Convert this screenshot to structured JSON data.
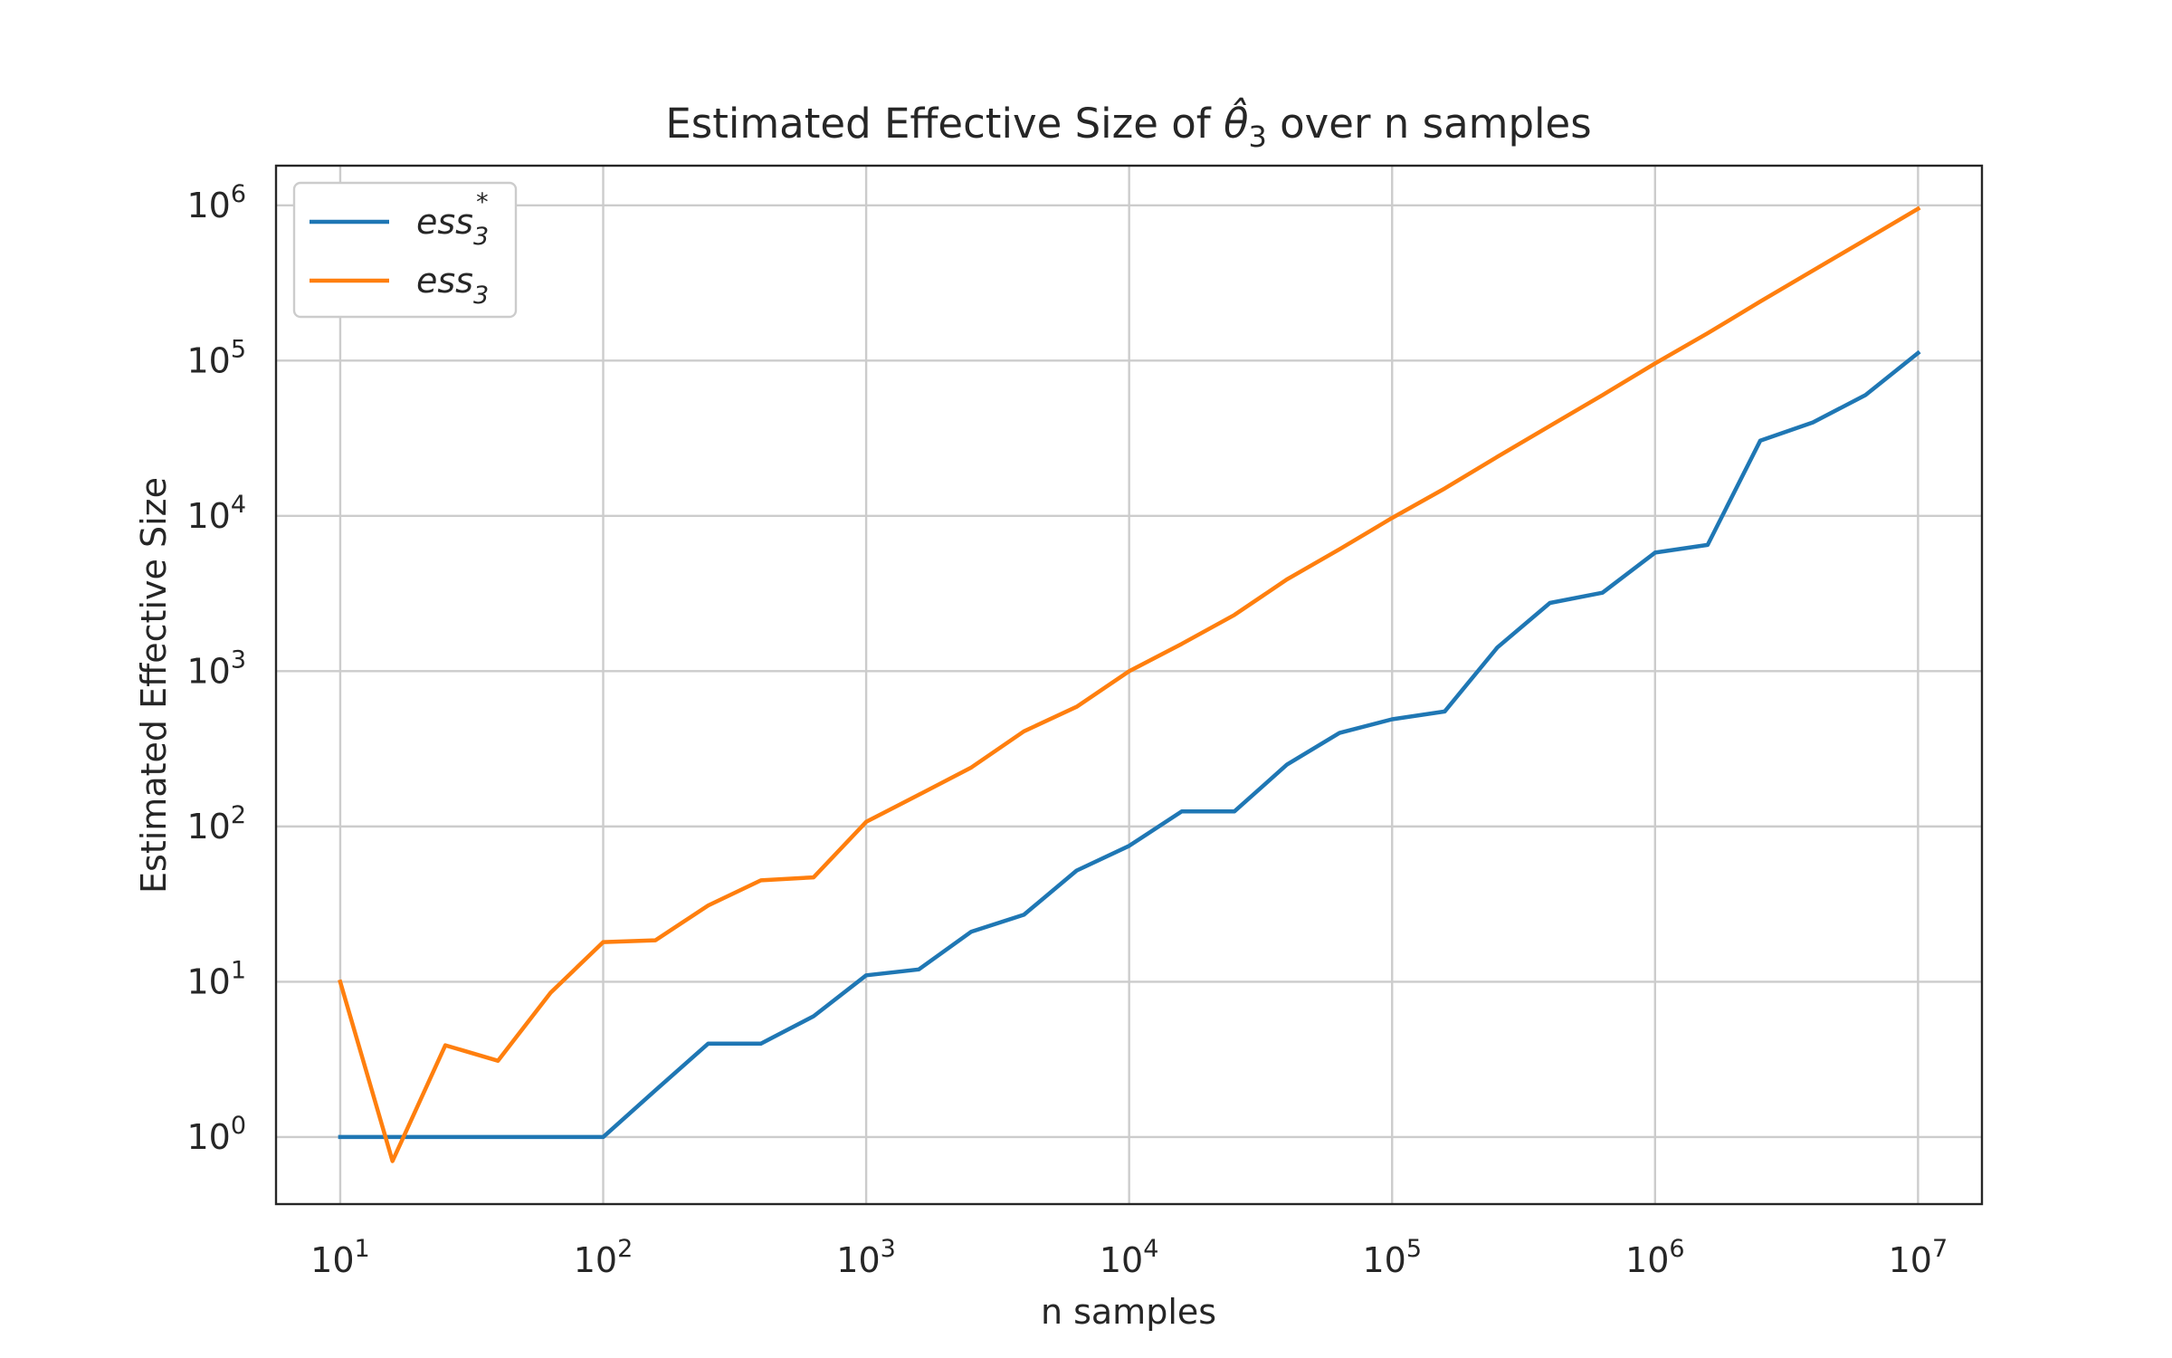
{
  "chart_data": {
    "type": "line",
    "title_prefix": "Estimated Effective Size of ",
    "title_symbol": "θ̂",
    "title_symbol_subscript": "3",
    "title_suffix": " over n samples",
    "xlabel": "n samples",
    "ylabel": "Estimated Effective Size",
    "xscale": "log",
    "yscale": "log",
    "xlim": [
      5.7,
      17500000
    ],
    "ylim": [
      0.37,
      1800000
    ],
    "grid": true,
    "legend_position": "top-left",
    "x_ticks": [
      10,
      100,
      1000,
      10000,
      100000,
      1000000,
      10000000
    ],
    "x_tick_labels": [
      {
        "base": "10",
        "exp": "1"
      },
      {
        "base": "10",
        "exp": "2"
      },
      {
        "base": "10",
        "exp": "3"
      },
      {
        "base": "10",
        "exp": "4"
      },
      {
        "base": "10",
        "exp": "5"
      },
      {
        "base": "10",
        "exp": "6"
      },
      {
        "base": "10",
        "exp": "7"
      }
    ],
    "y_ticks": [
      1,
      10,
      100,
      1000,
      10000,
      100000,
      1000000
    ],
    "y_tick_labels": [
      {
        "base": "10",
        "exp": "0"
      },
      {
        "base": "10",
        "exp": "1"
      },
      {
        "base": "10",
        "exp": "2"
      },
      {
        "base": "10",
        "exp": "3"
      },
      {
        "base": "10",
        "exp": "4"
      },
      {
        "base": "10",
        "exp": "5"
      },
      {
        "base": "10",
        "exp": "6"
      }
    ],
    "x": [
      10,
      15.8,
      25.1,
      39.8,
      63.1,
      100,
      158,
      251,
      398,
      631,
      1000,
      1585,
      2512,
      3981,
      6310,
      10000,
      15849,
      25119,
      39811,
      63096,
      100000,
      158489,
      251189,
      398107,
      630957,
      1000000,
      1584893,
      2511886,
      3981072,
      6309573,
      10000000
    ],
    "series": [
      {
        "name_base": "ess",
        "name_sub": "3",
        "name_sup": "*",
        "color": "#1f77b4",
        "values": [
          1,
          1,
          1,
          1,
          1,
          1,
          2,
          4,
          4,
          6,
          11,
          12,
          21,
          27,
          52,
          75,
          125,
          125,
          250,
          400,
          490,
          550,
          1420,
          2750,
          3200,
          5800,
          6500,
          30500,
          40000,
          60000,
          112000
        ]
      },
      {
        "name_base": "ess",
        "name_sub": "3",
        "name_sup": "",
        "color": "#ff7f0e",
        "values": [
          10,
          0.7,
          3.9,
          3.1,
          8.5,
          18,
          18.5,
          31,
          45,
          47,
          107,
          160,
          240,
          410,
          590,
          1000,
          1500,
          2300,
          3900,
          6100,
          9700,
          15000,
          24000,
          38000,
          60000,
          96000,
          150000,
          240000,
          380000,
          600000,
          950000
        ]
      }
    ]
  }
}
